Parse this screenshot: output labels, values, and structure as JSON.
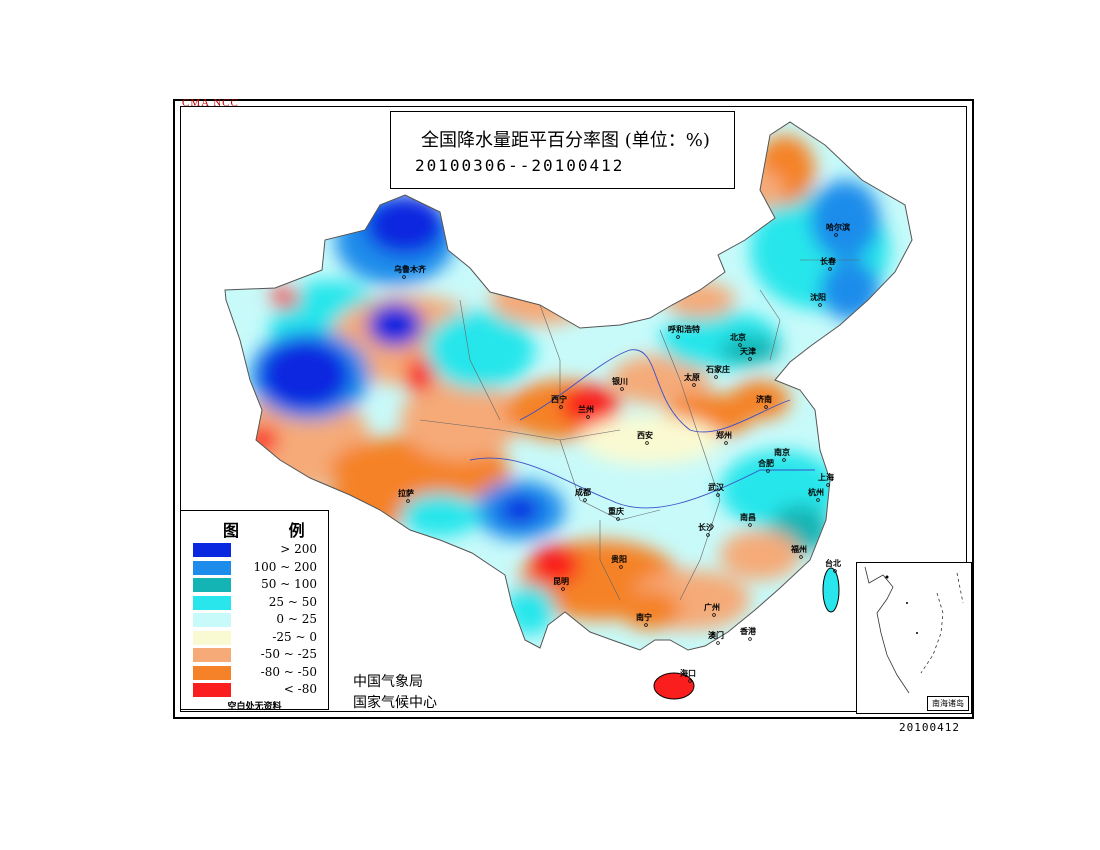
{
  "header": {
    "watermark": "CMA  NCC",
    "title": "全国降水量距平百分率图 (单位：%)",
    "date_range": "20100306--20100412"
  },
  "legend": {
    "title": "图 例",
    "items": [
      {
        "label": "> 200",
        "color": "#0a28e0"
      },
      {
        "label": "100 ~ 200",
        "color": "#1e8ceb"
      },
      {
        "label": "50 ~ 100",
        "color": "#14b4b4"
      },
      {
        "label": "25 ~ 50",
        "color": "#28e6eb"
      },
      {
        "label": "0 ~ 25",
        "color": "#c8fafa"
      },
      {
        "label": "-25 ~ 0",
        "color": "#fafad2"
      },
      {
        "label": "-50 ~ -25",
        "color": "#f5aa78"
      },
      {
        "label": "-80 ~ -50",
        "color": "#f58228"
      },
      {
        "label": "< -80",
        "color": "#fa1e1e"
      }
    ],
    "note": "空白处无资料"
  },
  "org": {
    "line1": "中国气象局",
    "line2": "国家气候中心"
  },
  "inset": {
    "label": "南海诸岛"
  },
  "footer": {
    "stamp": "20100412"
  },
  "cities": [
    "乌鲁木齐",
    "哈尔滨",
    "长春",
    "沈阳",
    "呼和浩特",
    "北京",
    "天津",
    "石家庄",
    "太原",
    "银川",
    "西宁",
    "兰州",
    "济南",
    "郑州",
    "西安",
    "合肥",
    "南京",
    "上海",
    "杭州",
    "武汉",
    "拉萨",
    "成都",
    "重庆",
    "长沙",
    "南昌",
    "福州",
    "台北",
    "贵阳",
    "昆明",
    "南宁",
    "广州",
    "澳门",
    "香港",
    "海口"
  ]
}
